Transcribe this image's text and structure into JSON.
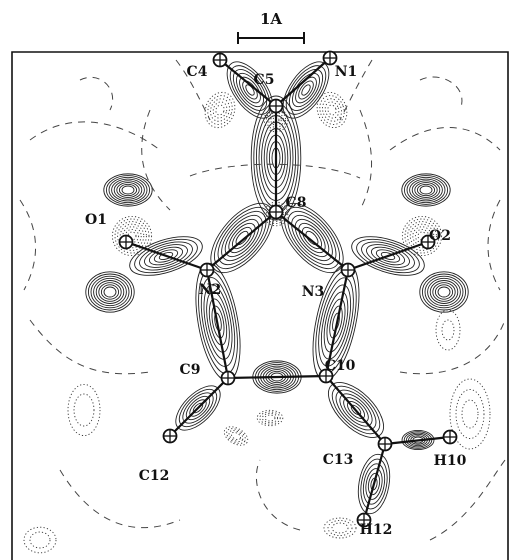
{
  "scale_bar": {
    "label": "1A"
  },
  "atoms": [
    {
      "id": "C4",
      "label": "C4"
    },
    {
      "id": "C5",
      "label": "C5"
    },
    {
      "id": "N1",
      "label": "N1"
    },
    {
      "id": "C8",
      "label": "C8"
    },
    {
      "id": "O1",
      "label": "O1"
    },
    {
      "id": "O2",
      "label": "O2"
    },
    {
      "id": "N2",
      "label": "N2"
    },
    {
      "id": "N3",
      "label": "N3"
    },
    {
      "id": "C9",
      "label": "C9"
    },
    {
      "id": "C10",
      "label": "C10"
    },
    {
      "id": "C12",
      "label": "C12"
    },
    {
      "id": "C13",
      "label": "C13"
    },
    {
      "id": "H10",
      "label": "H10"
    },
    {
      "id": "H12",
      "label": "H12"
    }
  ],
  "bonds": [
    [
      "C4",
      "C5"
    ],
    [
      "C5",
      "N1"
    ],
    [
      "C5",
      "C8"
    ],
    [
      "C8",
      "N2"
    ],
    [
      "C8",
      "N3"
    ],
    [
      "N2",
      "O1"
    ],
    [
      "N3",
      "O2"
    ],
    [
      "N2",
      "C9"
    ],
    [
      "N3",
      "C10"
    ],
    [
      "C9",
      "C10"
    ],
    [
      "C9",
      "C12"
    ],
    [
      "C10",
      "C13"
    ],
    [
      "C13",
      "H10"
    ],
    [
      "C13",
      "H12"
    ]
  ]
}
